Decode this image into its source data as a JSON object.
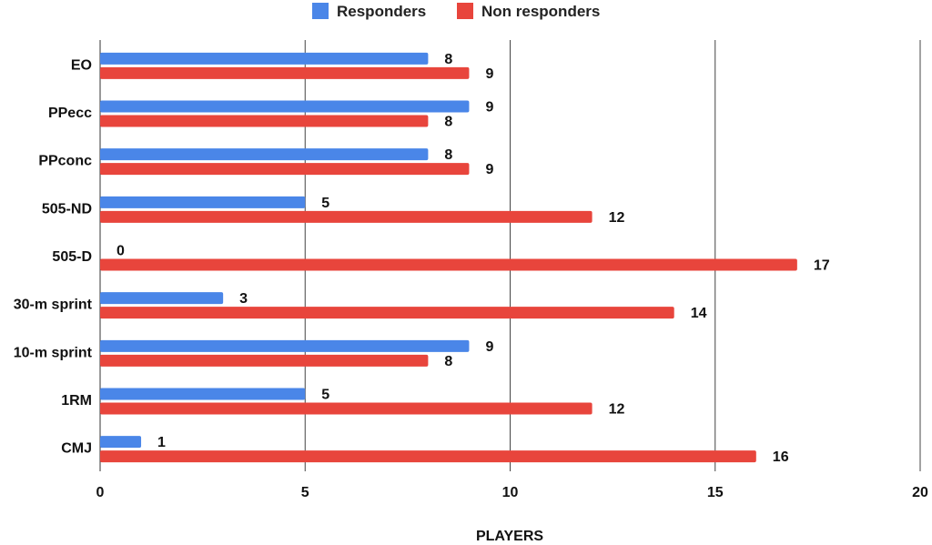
{
  "chart_data": {
    "type": "bar",
    "orientation": "horizontal",
    "categories": [
      "EO",
      "PPecc",
      "PPconc",
      "505-ND",
      "505-D",
      "30-m sprint",
      "10-m sprint",
      "1RM",
      "CMJ"
    ],
    "series": [
      {
        "name": "Responders",
        "color": "#4a86e8",
        "values": [
          8,
          9,
          8,
          5,
          0,
          3,
          9,
          5,
          1
        ]
      },
      {
        "name": "Non responders",
        "color": "#e8453c",
        "values": [
          9,
          8,
          9,
          12,
          17,
          14,
          8,
          12,
          16
        ]
      }
    ],
    "title": "",
    "xlabel": "PLAYERS",
    "ylabel": "",
    "xlim": [
      0,
      20
    ],
    "xticks": [
      "0",
      "5",
      "10",
      "15",
      "20"
    ],
    "grid": true,
    "legend_position": "top",
    "data_labels": true
  }
}
